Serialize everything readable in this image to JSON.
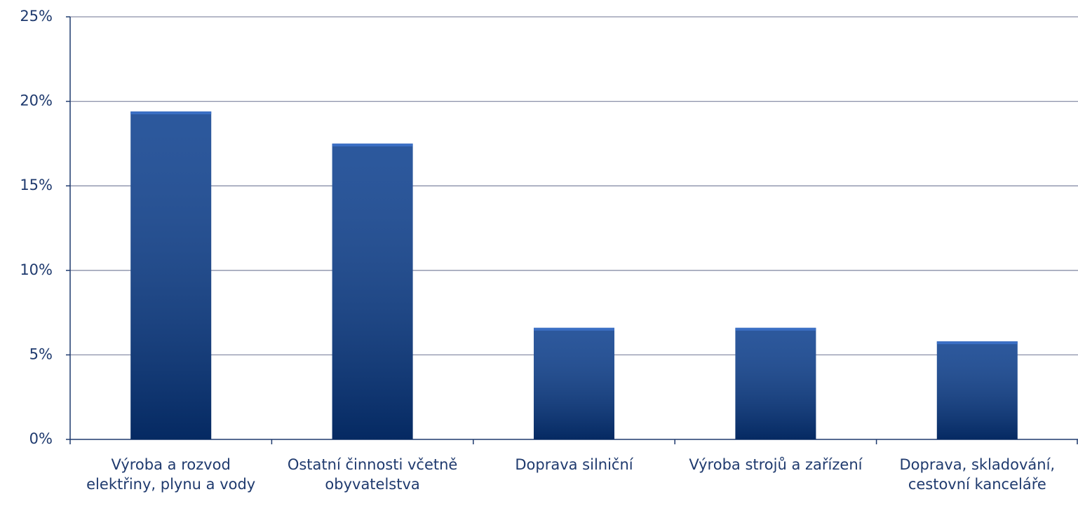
{
  "chart_data": {
    "type": "bar",
    "categories": [
      "Výroba a rozvod elektřiny, plynu a vody",
      "Ostatní činnosti včetně obyvatelstva",
      "Doprava silniční",
      "Výroba strojů a zařízení",
      "Doprava, skladování, cestovní kanceláře"
    ],
    "values": [
      19.4,
      17.5,
      6.6,
      6.6,
      5.8
    ],
    "color": "#073b8c",
    "ylim": [
      0,
      25
    ],
    "yticks": [
      {
        "value": 0,
        "label": "0%"
      },
      {
        "value": 5,
        "label": "5%"
      },
      {
        "value": 10,
        "label": "10%"
      },
      {
        "value": 15,
        "label": "15%"
      },
      {
        "value": 20,
        "label": "20%"
      },
      {
        "value": 25,
        "label": "25%"
      }
    ],
    "grid": true
  }
}
